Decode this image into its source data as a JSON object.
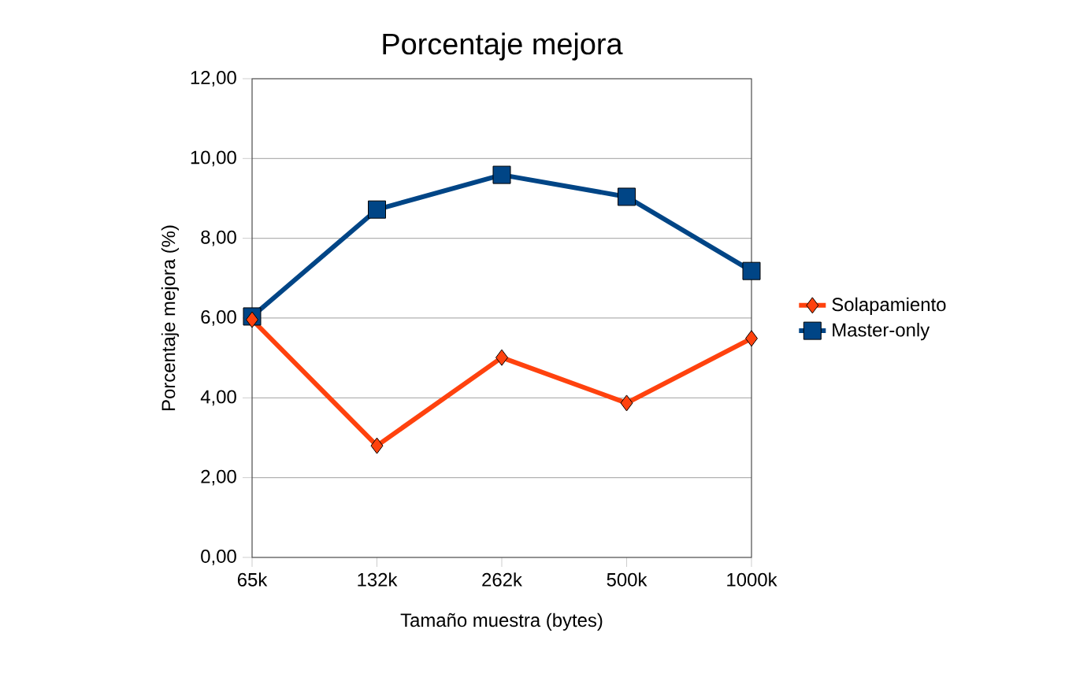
{
  "chart_data": {
    "type": "line",
    "title": "Porcentaje mejora",
    "xlabel": "Tamaño muestra (bytes)",
    "ylabel": "Porcentaje mejora (%)",
    "categories": [
      "65k",
      "132k",
      "262k",
      "500k",
      "1000k"
    ],
    "series": [
      {
        "name": "Solapamiento",
        "color": "#ff420e",
        "marker": "diamond",
        "values": [
          5.96,
          2.8,
          5.01,
          3.87,
          5.49
        ]
      },
      {
        "name": "Master-only",
        "color": "#004586",
        "marker": "square",
        "values": [
          6.04,
          8.72,
          9.59,
          9.04,
          7.18
        ]
      }
    ],
    "ylim": [
      0,
      12
    ],
    "yticks": [
      {
        "value": 0,
        "label": "0,00"
      },
      {
        "value": 2,
        "label": "2,00"
      },
      {
        "value": 4,
        "label": "4,00"
      },
      {
        "value": 6,
        "label": "6,00"
      },
      {
        "value": 8,
        "label": "8,00"
      },
      {
        "value": 10,
        "label": "10,00"
      },
      {
        "value": 12,
        "label": "12,00"
      }
    ],
    "grid": "y",
    "legend": "right"
  }
}
